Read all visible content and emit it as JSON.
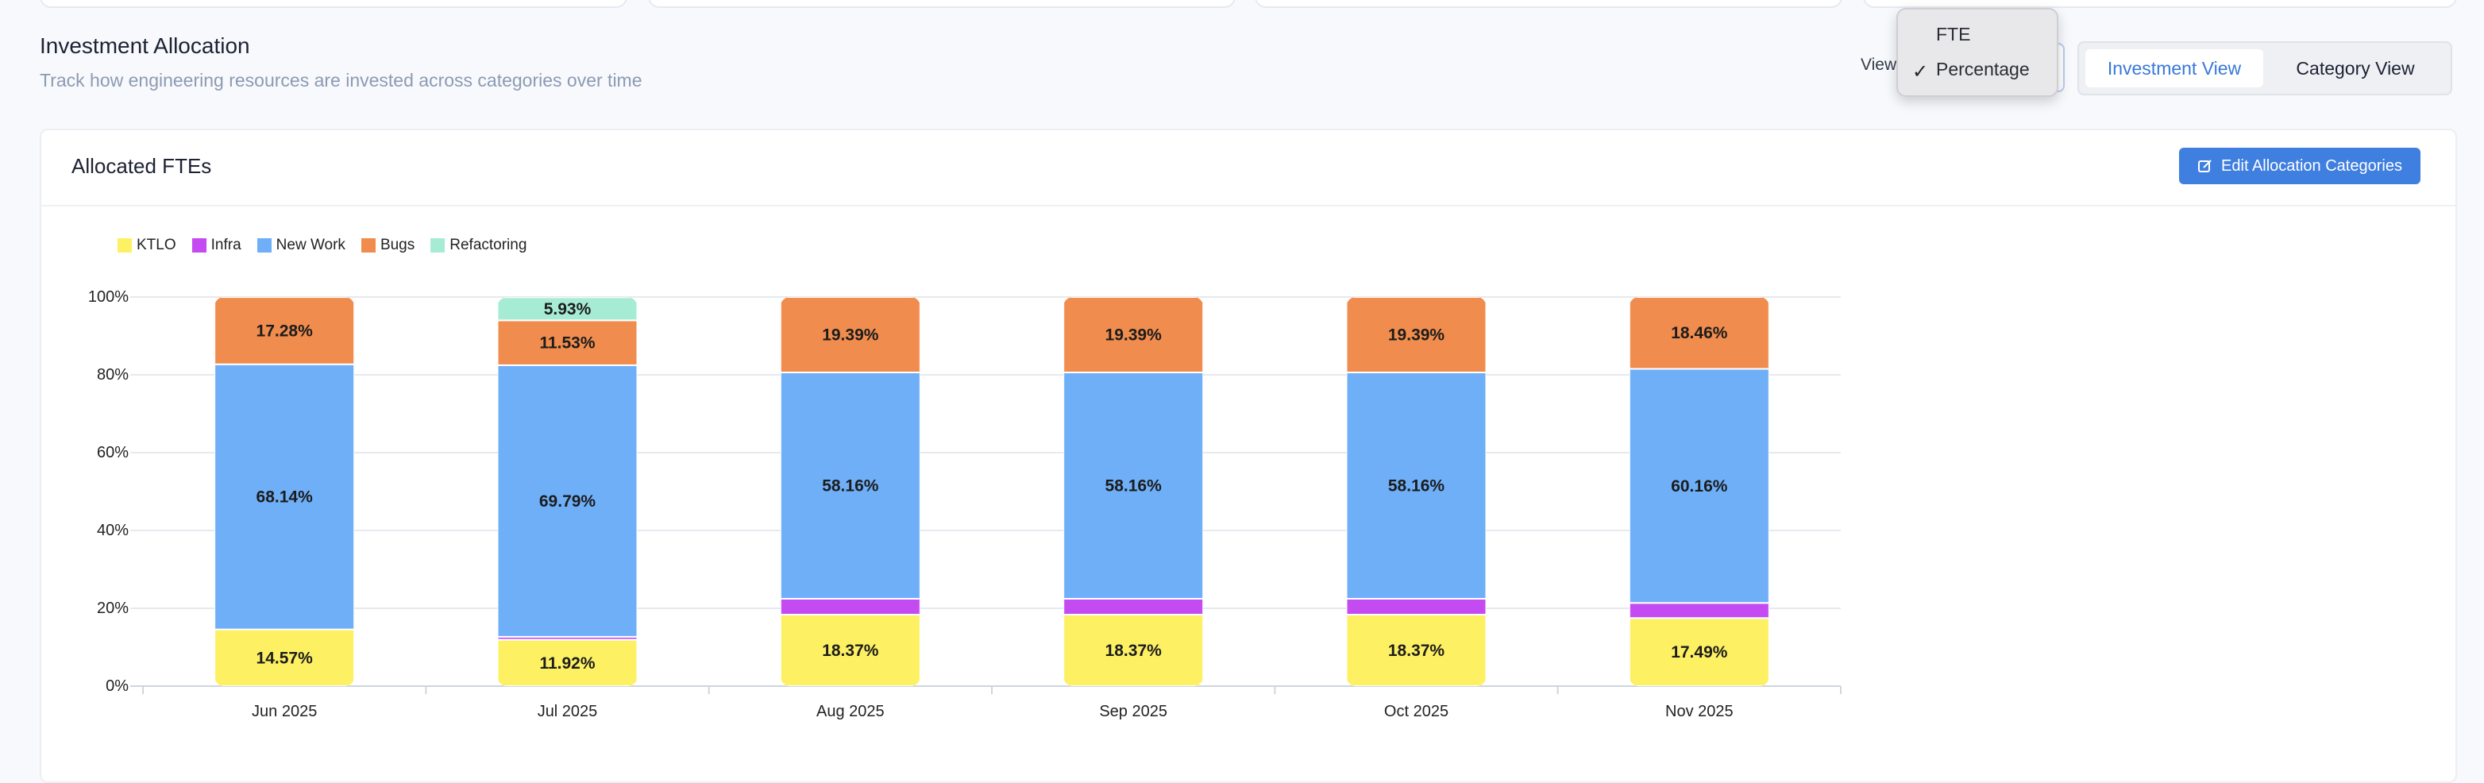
{
  "section": {
    "title": "Investment Allocation",
    "subtitle": "Track how engineering resources are invested across categories over time"
  },
  "view_select": {
    "label": "View",
    "options": [
      "FTE",
      "Percentage"
    ],
    "selected": "Percentage",
    "check_glyph": "✓"
  },
  "view_toggle": {
    "active": "Investment View",
    "inactive": "Category View"
  },
  "panel": {
    "title": "Allocated FTEs",
    "edit_button": "Edit Allocation Categories"
  },
  "colors": {
    "accent": "#3f7fe0",
    "KTLO": "#fdf163",
    "Infra": "#c44bf2",
    "New Work": "#6eaff8",
    "Bugs": "#f08c4d",
    "Refactoring": "#a6ecd5"
  },
  "chart_data": {
    "type": "bar",
    "stacked": true,
    "title": "Allocated FTEs",
    "xlabel": "",
    "ylabel": "",
    "ylim": [
      0,
      100
    ],
    "yticks": [
      "0%",
      "20%",
      "40%",
      "60%",
      "80%",
      "100%"
    ],
    "legend_position": "top-left",
    "categories": [
      "Jun 2025",
      "Jul 2025",
      "Aug 2025",
      "Sep 2025",
      "Oct 2025",
      "Nov 2025"
    ],
    "series": [
      {
        "name": "KTLO",
        "values": [
          14.57,
          11.92,
          18.37,
          18.37,
          18.37,
          17.49
        ]
      },
      {
        "name": "Infra",
        "values": [
          0,
          0.76,
          4.08,
          4.08,
          4.08,
          3.89
        ]
      },
      {
        "name": "New Work",
        "values": [
          68.14,
          69.79,
          58.16,
          58.16,
          58.16,
          60.16
        ]
      },
      {
        "name": "Bugs",
        "values": [
          17.28,
          11.53,
          19.39,
          19.39,
          19.39,
          18.46
        ]
      },
      {
        "name": "Refactoring",
        "values": [
          0.01,
          5.93,
          0,
          0,
          0,
          0
        ]
      }
    ],
    "data_labels": [
      {
        "series": "KTLO",
        "labels": [
          "14.57%",
          "11.92%",
          "18.37%",
          "18.37%",
          "18.37%",
          "17.49%"
        ]
      },
      {
        "series": "New Work",
        "labels": [
          "68.14%",
          "69.79%",
          "58.16%",
          "58.16%",
          "58.16%",
          "60.16%"
        ]
      },
      {
        "series": "Bugs",
        "labels": [
          "17.28%",
          "11.53%",
          "19.39%",
          "19.39%",
          "19.39%",
          "18.46%"
        ]
      },
      {
        "series": "Refactoring",
        "labels": [
          "",
          "5.93%",
          "",
          "",
          "",
          ""
        ]
      }
    ]
  }
}
